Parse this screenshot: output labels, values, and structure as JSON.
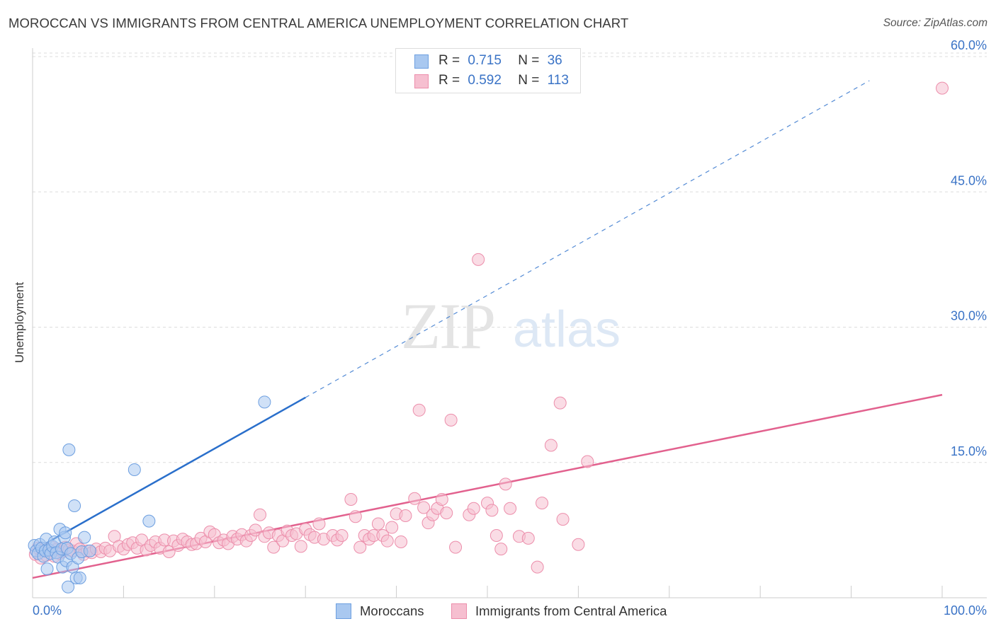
{
  "title": "MOROCCAN VS IMMIGRANTS FROM CENTRAL AMERICA UNEMPLOYMENT CORRELATION CHART",
  "source": "Source: ZipAtlas.com",
  "watermark": {
    "zip": "ZIP",
    "atlas": "atlas"
  },
  "colors": {
    "blue_fill": "#a9c8f0",
    "blue_stroke": "#6d9fe0",
    "blue_line": "#2a6fcb",
    "pink_fill": "#f6bfd0",
    "pink_stroke": "#ec8eab",
    "pink_line": "#e2618e",
    "axis_label": "#3a73c6",
    "grid": "#dddddd"
  },
  "stats": [
    {
      "r_label": "R =",
      "r_value": "0.715",
      "n_label": "N =",
      "n_value": "36"
    },
    {
      "r_label": "R =",
      "r_value": "0.592",
      "n_label": "N =",
      "n_value": "113"
    }
  ],
  "chart_data": {
    "type": "scatter",
    "title": "MOROCCAN VS IMMIGRANTS FROM CENTRAL AMERICA UNEMPLOYMENT CORRELATION CHART",
    "xlabel": "",
    "ylabel": "Unemployment",
    "xlim": [
      0,
      100
    ],
    "ylim": [
      0,
      60
    ],
    "x_tick_labels": [
      "0.0%",
      "100.0%"
    ],
    "y_ticks": [
      15,
      30,
      45,
      60
    ],
    "y_tick_labels": [
      "15.0%",
      "30.0%",
      "45.0%",
      "60.0%"
    ],
    "grid": true,
    "legend_position": "bottom-center",
    "series": [
      {
        "name": "Moroccans",
        "trend": {
          "x0": 0,
          "y0": 5.2,
          "x1": 30,
          "y1": 22.2,
          "dash_to_x": 92
        },
        "points": [
          [
            0.2,
            5.8
          ],
          [
            0.4,
            5.2
          ],
          [
            0.6,
            4.9
          ],
          [
            0.8,
            5.9
          ],
          [
            1.0,
            5.5
          ],
          [
            1.2,
            4.6
          ],
          [
            1.4,
            5.2
          ],
          [
            1.5,
            6.5
          ],
          [
            1.6,
            3.2
          ],
          [
            1.8,
            5.3
          ],
          [
            2.0,
            4.9
          ],
          [
            2.2,
            5.7
          ],
          [
            2.4,
            6.2
          ],
          [
            2.6,
            5.0
          ],
          [
            2.8,
            4.5
          ],
          [
            3.0,
            7.6
          ],
          [
            3.2,
            5.4
          ],
          [
            3.3,
            3.4
          ],
          [
            3.5,
            6.7
          ],
          [
            3.6,
            7.2
          ],
          [
            3.7,
            4.1
          ],
          [
            3.8,
            5.5
          ],
          [
            3.9,
            1.2
          ],
          [
            4.0,
            16.4
          ],
          [
            4.2,
            4.9
          ],
          [
            4.4,
            3.4
          ],
          [
            4.6,
            10.2
          ],
          [
            4.8,
            2.2
          ],
          [
            5.0,
            4.4
          ],
          [
            5.2,
            2.2
          ],
          [
            5.4,
            5.1
          ],
          [
            5.7,
            6.7
          ],
          [
            6.3,
            5.2
          ],
          [
            11.2,
            14.2
          ],
          [
            12.8,
            8.5
          ],
          [
            25.5,
            21.7
          ]
        ]
      },
      {
        "name": "Immigrants from Central America",
        "trend": {
          "x0": 0,
          "y0": 2.2,
          "x1": 100,
          "y1": 22.5
        },
        "points": [
          [
            0.3,
            4.8
          ],
          [
            0.6,
            5.5
          ],
          [
            0.9,
            4.4
          ],
          [
            1.2,
            5.3
          ],
          [
            1.5,
            4.7
          ],
          [
            1.8,
            5.2
          ],
          [
            2.1,
            5.6
          ],
          [
            2.4,
            4.6
          ],
          [
            2.7,
            5.4
          ],
          [
            3.0,
            4.9
          ],
          [
            3.3,
            5.1
          ],
          [
            3.6,
            5.6
          ],
          [
            4.0,
            5.3
          ],
          [
            4.4,
            5.2
          ],
          [
            4.8,
            6.0
          ],
          [
            5.2,
            5.4
          ],
          [
            5.6,
            4.8
          ],
          [
            6.0,
            5.2
          ],
          [
            6.5,
            5.0
          ],
          [
            7.0,
            5.4
          ],
          [
            7.5,
            5.1
          ],
          [
            8.0,
            5.5
          ],
          [
            8.5,
            5.2
          ],
          [
            9.0,
            6.8
          ],
          [
            9.5,
            5.7
          ],
          [
            10.0,
            5.4
          ],
          [
            10.5,
            5.9
          ],
          [
            11.0,
            6.1
          ],
          [
            11.5,
            5.5
          ],
          [
            12.0,
            6.4
          ],
          [
            12.5,
            5.3
          ],
          [
            13.0,
            5.8
          ],
          [
            13.5,
            6.2
          ],
          [
            14.0,
            5.5
          ],
          [
            14.5,
            6.4
          ],
          [
            15.0,
            5.1
          ],
          [
            15.5,
            6.3
          ],
          [
            16.0,
            5.8
          ],
          [
            16.5,
            6.5
          ],
          [
            17.0,
            6.2
          ],
          [
            17.5,
            5.9
          ],
          [
            18.0,
            6.0
          ],
          [
            18.5,
            6.6
          ],
          [
            19.0,
            6.2
          ],
          [
            19.5,
            7.3
          ],
          [
            20.0,
            7.0
          ],
          [
            20.5,
            6.1
          ],
          [
            21.0,
            6.4
          ],
          [
            21.5,
            6.0
          ],
          [
            22.0,
            6.8
          ],
          [
            22.5,
            6.5
          ],
          [
            23.0,
            7.0
          ],
          [
            23.5,
            6.3
          ],
          [
            24.0,
            6.9
          ],
          [
            24.5,
            7.5
          ],
          [
            25.0,
            9.2
          ],
          [
            25.5,
            6.8
          ],
          [
            26.0,
            7.2
          ],
          [
            26.5,
            5.6
          ],
          [
            27.0,
            6.9
          ],
          [
            27.5,
            6.3
          ],
          [
            28.0,
            7.4
          ],
          [
            28.5,
            6.9
          ],
          [
            29.0,
            7.1
          ],
          [
            29.5,
            5.7
          ],
          [
            30.0,
            7.6
          ],
          [
            30.5,
            7.0
          ],
          [
            31.0,
            6.7
          ],
          [
            31.5,
            8.2
          ],
          [
            32.0,
            6.5
          ],
          [
            33.0,
            6.9
          ],
          [
            33.5,
            6.4
          ],
          [
            34.0,
            6.9
          ],
          [
            35.0,
            10.9
          ],
          [
            35.5,
            9.0
          ],
          [
            36.0,
            5.6
          ],
          [
            36.5,
            6.9
          ],
          [
            37.0,
            6.5
          ],
          [
            37.5,
            6.9
          ],
          [
            38.0,
            8.2
          ],
          [
            38.5,
            6.9
          ],
          [
            39.0,
            6.3
          ],
          [
            39.5,
            7.8
          ],
          [
            40.0,
            9.3
          ],
          [
            40.5,
            6.2
          ],
          [
            41.0,
            9.1
          ],
          [
            42.0,
            11.0
          ],
          [
            42.5,
            20.8
          ],
          [
            43.0,
            10.0
          ],
          [
            43.5,
            8.3
          ],
          [
            44.0,
            9.2
          ],
          [
            44.5,
            9.9
          ],
          [
            45.0,
            10.9
          ],
          [
            45.5,
            9.4
          ],
          [
            46.0,
            19.7
          ],
          [
            46.5,
            5.6
          ],
          [
            48.0,
            9.2
          ],
          [
            48.5,
            9.9
          ],
          [
            49.0,
            37.5
          ],
          [
            50.0,
            10.5
          ],
          [
            50.5,
            9.7
          ],
          [
            51.0,
            6.9
          ],
          [
            51.5,
            5.4
          ],
          [
            52.0,
            12.6
          ],
          [
            52.5,
            9.9
          ],
          [
            53.5,
            6.8
          ],
          [
            54.5,
            6.6
          ],
          [
            55.5,
            3.4
          ],
          [
            56.0,
            10.5
          ],
          [
            57.0,
            16.9
          ],
          [
            58.0,
            21.6
          ],
          [
            58.3,
            8.7
          ],
          [
            60.0,
            5.9
          ],
          [
            61.0,
            15.1
          ],
          [
            100.0,
            56.5
          ]
        ]
      }
    ]
  },
  "legend": {
    "items": [
      "Moroccans",
      "Immigrants from Central America"
    ]
  }
}
